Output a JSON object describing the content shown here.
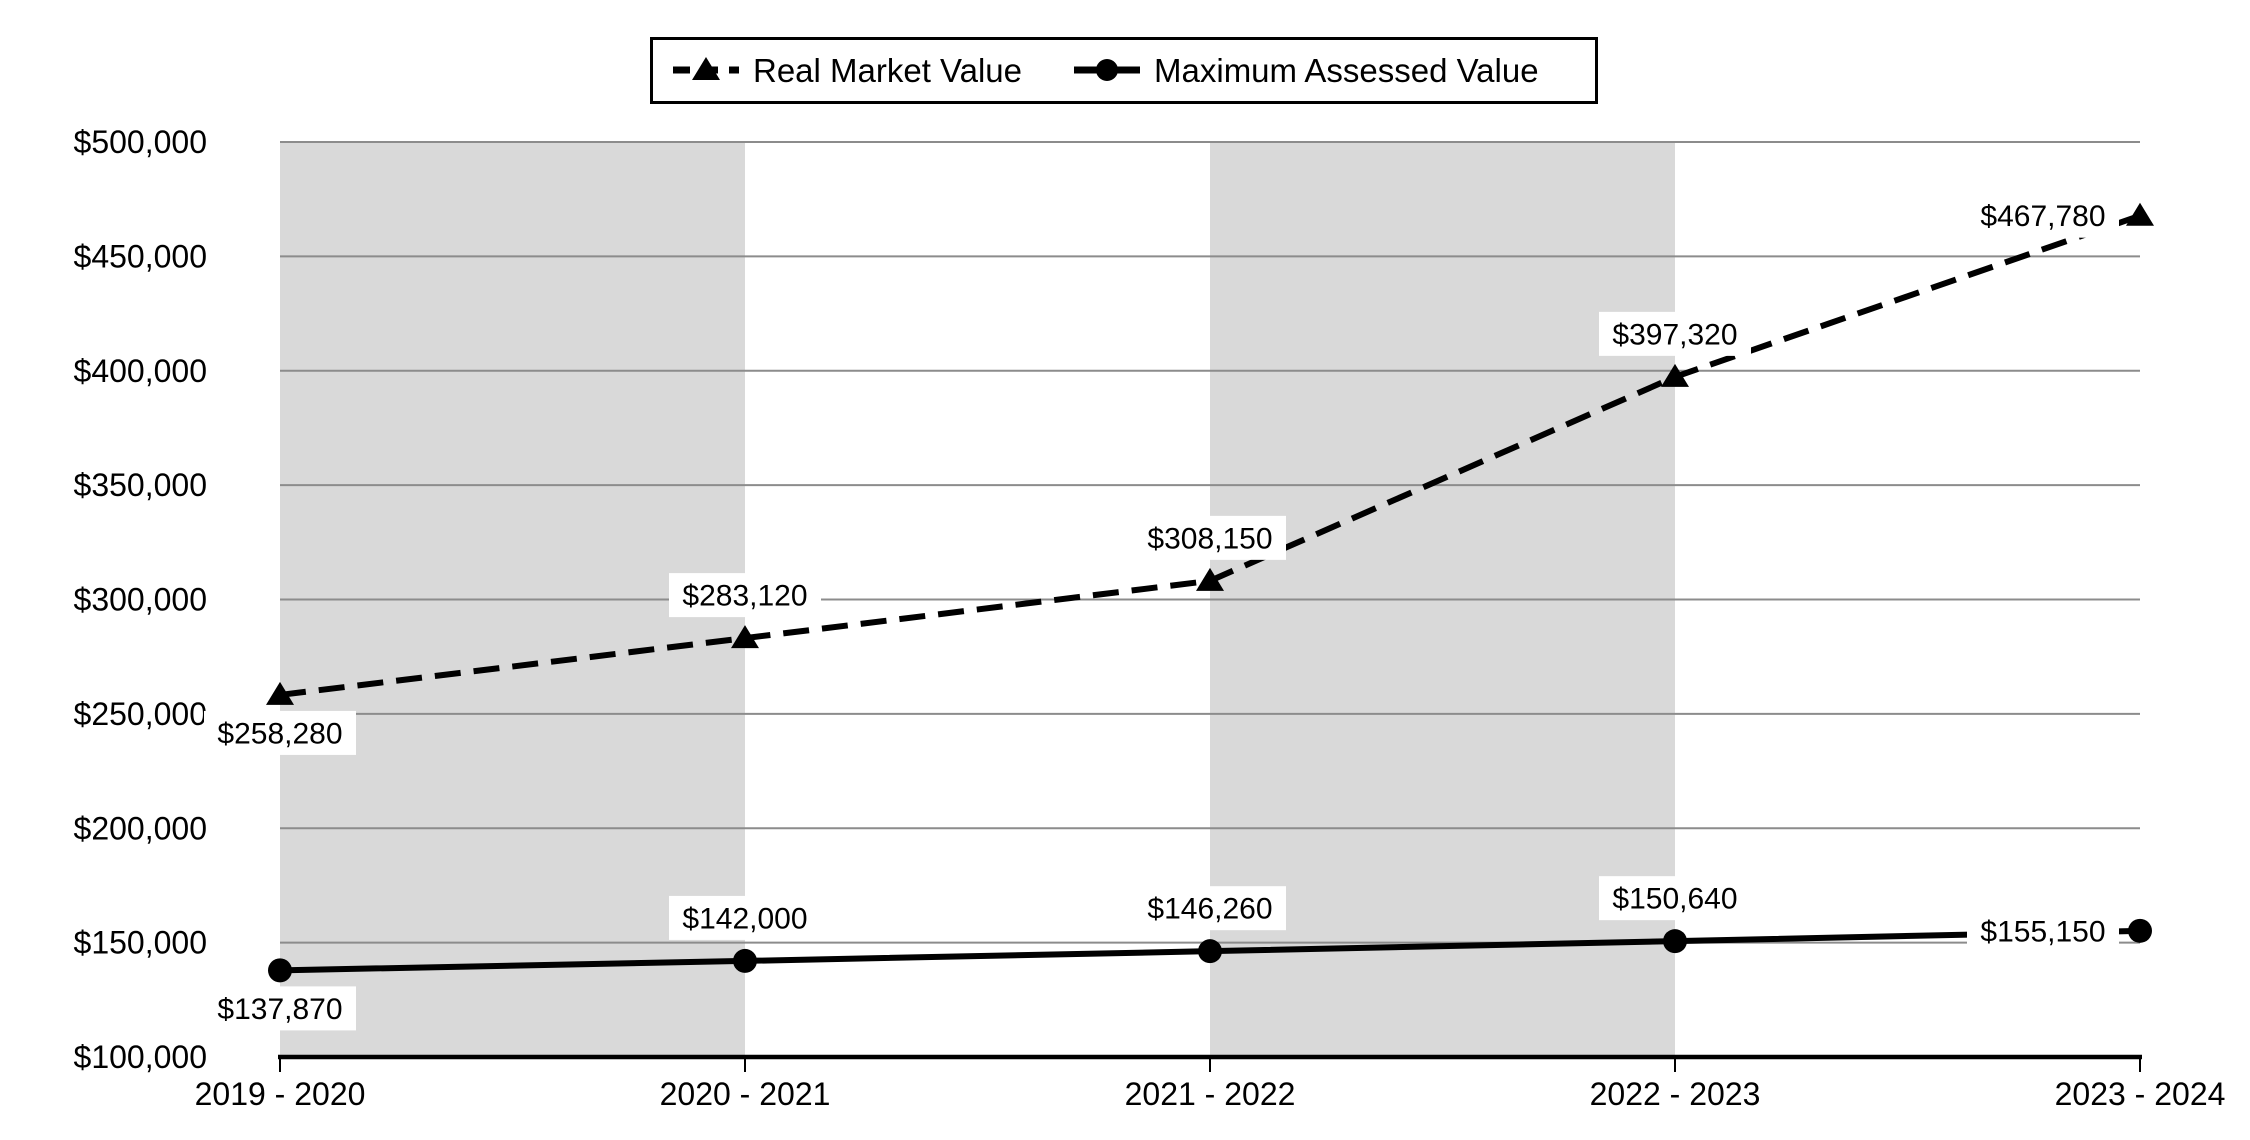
{
  "legend": {
    "items": [
      {
        "label": "Real Market Value",
        "marker": "triangle",
        "line_style": "dashed"
      },
      {
        "label": "Maximum Assessed Value",
        "marker": "circle",
        "line_style": "solid"
      }
    ]
  },
  "chart_data": {
    "type": "line",
    "title": "",
    "xlabel": "",
    "ylabel": "",
    "categories": [
      "2019 - 2020",
      "2020 - 2021",
      "2021 - 2022",
      "2022 - 2023",
      "2023 - 2024"
    ],
    "series": [
      {
        "name": "Real Market Value",
        "style": "dashed",
        "marker": "triangle",
        "values": [
          258280,
          283120,
          308150,
          397320,
          467780
        ],
        "labels": [
          "$258,280",
          "$283,120",
          "$308,150",
          "$397,320",
          "$467,780"
        ],
        "label_positions": [
          "below",
          "above",
          "above",
          "above",
          "left"
        ]
      },
      {
        "name": "Maximum Assessed Value",
        "style": "solid",
        "marker": "circle",
        "values": [
          137870,
          142000,
          146260,
          150640,
          155150
        ],
        "labels": [
          "$137,870",
          "$142,000",
          "$146,260",
          "$150,640",
          "$155,150"
        ],
        "label_positions": [
          "below",
          "above",
          "above",
          "above",
          "left"
        ]
      }
    ],
    "ylim": [
      100000,
      500000
    ],
    "y_tick_step": 50000,
    "y_ticks": [
      {
        "value": 100000,
        "label": "$100,000"
      },
      {
        "value": 150000,
        "label": "$150,000"
      },
      {
        "value": 200000,
        "label": "$200,000"
      },
      {
        "value": 250000,
        "label": "$250,000"
      },
      {
        "value": 300000,
        "label": "$300,000"
      },
      {
        "value": 350000,
        "label": "$350,000"
      },
      {
        "value": 400000,
        "label": "$400,000"
      },
      {
        "value": 450000,
        "label": "$450,000"
      },
      {
        "value": 500000,
        "label": "$500,000"
      }
    ],
    "grid": true,
    "legend_position": "top-center",
    "plot_bands": {
      "intervals": [
        [
          0,
          1
        ],
        [
          2,
          3
        ]
      ]
    },
    "colors": {
      "series": "#000000",
      "gridline": "#8c8c8c",
      "band": "#d9d9d9",
      "background": "#ffffff",
      "label_bg": "#ffffff",
      "axis": "#000000"
    }
  }
}
